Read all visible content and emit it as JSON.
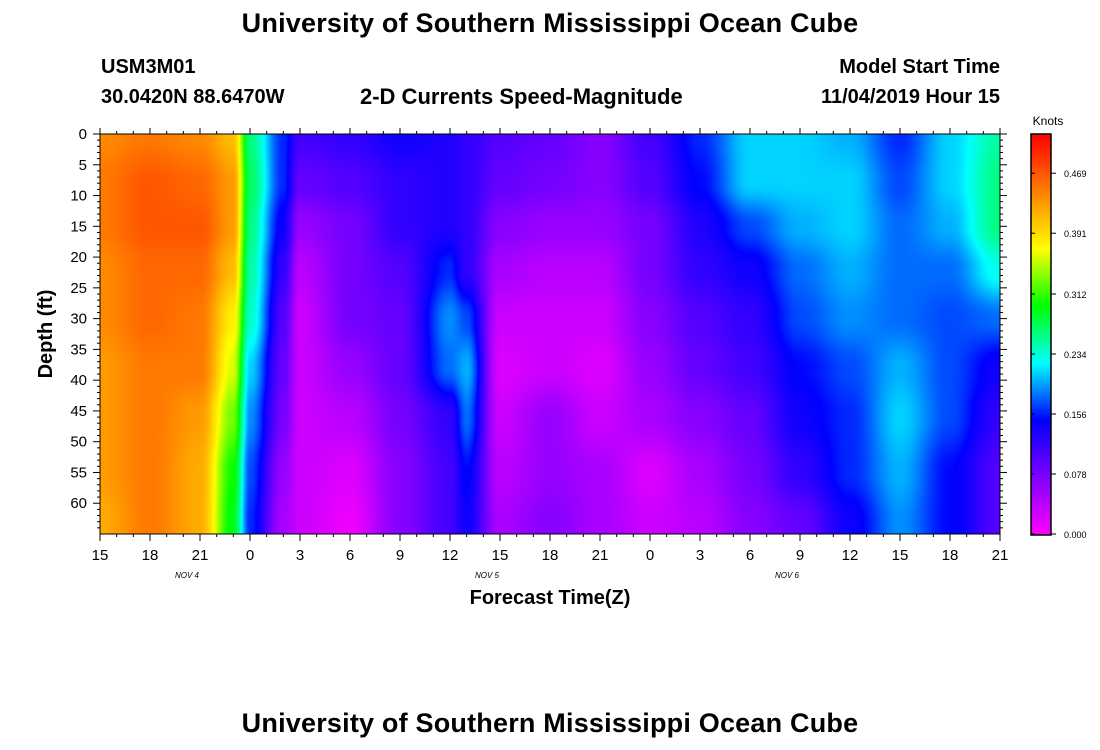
{
  "header": {
    "title": "University of Southern Mississippi Ocean Cube",
    "station_id": "USM3M01",
    "station_coords": "30.0420N 88.6470W",
    "subtitle": "2-D Currents Speed-Magnitude",
    "model_start_label": "Model Start Time",
    "model_start_value": "11/04/2019 Hour 15"
  },
  "footer": {
    "title": "University of Southern Mississippi Ocean Cube"
  },
  "chart_data": {
    "type": "heatmap",
    "title": "2-D Currents Speed-Magnitude",
    "xlabel": "Forecast Time(Z)",
    "ylabel": "Depth (ft)",
    "x_tick_labels": [
      "15",
      "18",
      "21",
      "0",
      "3",
      "6",
      "9",
      "12",
      "15",
      "18",
      "21",
      "0",
      "3",
      "6",
      "9",
      "12",
      "15",
      "18",
      "21"
    ],
    "x_date_labels": [
      {
        "label": "NOV 4",
        "tick_index": 2
      },
      {
        "label": "NOV 5",
        "tick_index": 8
      },
      {
        "label": "NOV 6",
        "tick_index": 14
      }
    ],
    "y_tick_labels": [
      "0",
      "5",
      "10",
      "15",
      "20",
      "25",
      "30",
      "35",
      "40",
      "45",
      "50",
      "55",
      "60"
    ],
    "y_range_ft": [
      0,
      65
    ],
    "y_inverted": true,
    "colorbar": {
      "unit_label": "Knots",
      "range": [
        0.0,
        0.52
      ],
      "tick_values": [
        0.0,
        0.078,
        0.156,
        0.234,
        0.312,
        0.391,
        0.469
      ],
      "tick_labels": [
        "0.000",
        "0.078",
        "0.156",
        "0.234",
        "0.312",
        "0.391",
        "0.469"
      ],
      "colors": [
        "#ff00ff",
        "#8000ff",
        "#0000ff",
        "#00ffff",
        "#00ff00",
        "#ffff00",
        "#ff8000",
        "#ff0000"
      ]
    },
    "depths_ft": [
      0,
      8,
      15,
      22,
      30,
      38,
      46,
      55,
      63
    ],
    "hours_from_start": [
      0,
      3,
      6,
      8,
      9,
      11,
      12,
      15,
      18,
      21,
      22,
      24,
      27,
      30,
      33,
      36,
      39,
      42,
      45,
      48,
      51,
      54
    ],
    "speed_knots": [
      [
        0.44,
        0.45,
        0.45,
        0.44,
        0.44,
        0.43,
        0.43,
        0.43,
        0.42
      ],
      [
        0.45,
        0.47,
        0.47,
        0.46,
        0.46,
        0.45,
        0.45,
        0.45,
        0.45
      ],
      [
        0.44,
        0.46,
        0.47,
        0.46,
        0.45,
        0.45,
        0.43,
        0.42,
        0.42
      ],
      [
        0.41,
        0.43,
        0.43,
        0.41,
        0.38,
        0.36,
        0.33,
        0.3,
        0.29
      ],
      [
        0.26,
        0.27,
        0.26,
        0.25,
        0.24,
        0.21,
        0.19,
        0.17,
        0.16
      ],
      [
        0.16,
        0.16,
        0.14,
        0.12,
        0.1,
        0.09,
        0.08,
        0.06,
        0.05
      ],
      [
        0.11,
        0.09,
        0.06,
        0.04,
        0.03,
        0.03,
        0.03,
        0.03,
        0.03
      ],
      [
        0.12,
        0.1,
        0.08,
        0.08,
        0.08,
        0.06,
        0.04,
        0.02,
        0.01
      ],
      [
        0.14,
        0.12,
        0.12,
        0.1,
        0.09,
        0.09,
        0.08,
        0.07,
        0.07
      ],
      [
        0.13,
        0.13,
        0.13,
        0.16,
        0.19,
        0.18,
        0.12,
        0.11,
        0.11
      ],
      [
        0.12,
        0.12,
        0.12,
        0.12,
        0.17,
        0.2,
        0.18,
        0.15,
        0.14
      ],
      [
        0.1,
        0.09,
        0.07,
        0.05,
        0.03,
        0.02,
        0.03,
        0.04,
        0.05
      ],
      [
        0.09,
        0.08,
        0.06,
        0.04,
        0.03,
        0.03,
        0.06,
        0.06,
        0.07
      ],
      [
        0.07,
        0.07,
        0.06,
        0.04,
        0.03,
        0.02,
        0.03,
        0.05,
        0.05
      ],
      [
        0.11,
        0.1,
        0.08,
        0.08,
        0.07,
        0.06,
        0.05,
        0.02,
        0.03
      ],
      [
        0.16,
        0.15,
        0.13,
        0.12,
        0.1,
        0.09,
        0.07,
        0.05,
        0.04
      ],
      [
        0.21,
        0.21,
        0.17,
        0.14,
        0.12,
        0.11,
        0.09,
        0.08,
        0.07
      ],
      [
        0.21,
        0.21,
        0.2,
        0.18,
        0.17,
        0.15,
        0.14,
        0.12,
        0.09
      ],
      [
        0.2,
        0.21,
        0.21,
        0.2,
        0.19,
        0.17,
        0.16,
        0.16,
        0.14
      ],
      [
        0.16,
        0.17,
        0.18,
        0.18,
        0.18,
        0.2,
        0.21,
        0.2,
        0.19
      ],
      [
        0.21,
        0.21,
        0.2,
        0.18,
        0.17,
        0.17,
        0.17,
        0.15,
        0.15
      ],
      [
        0.25,
        0.26,
        0.26,
        0.23,
        0.18,
        0.14,
        0.12,
        0.1,
        0.1
      ]
    ]
  }
}
